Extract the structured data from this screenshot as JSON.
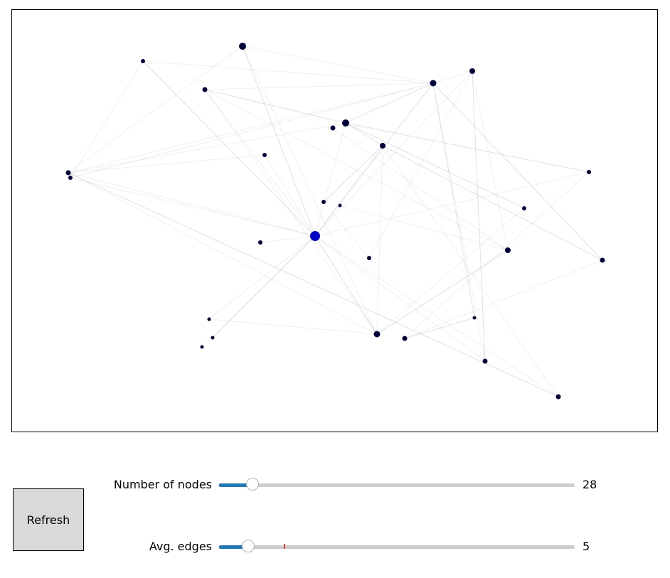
{
  "refresh_label": "Refresh",
  "sliders": [
    {
      "label": "Number of nodes",
      "value": "28",
      "fraction": 0.094,
      "marker": null
    },
    {
      "label": "Avg. edges",
      "value": "5",
      "fraction": 0.082,
      "marker": 0.184
    }
  ],
  "colors": {
    "accent": "#1f77b4",
    "track": "#cccccc",
    "node": "#00003a",
    "node_highlight": "#0000cc",
    "edge": "#bbbbbb",
    "button_bg": "#d9d9d9",
    "marker": "#e8392b"
  }
}
